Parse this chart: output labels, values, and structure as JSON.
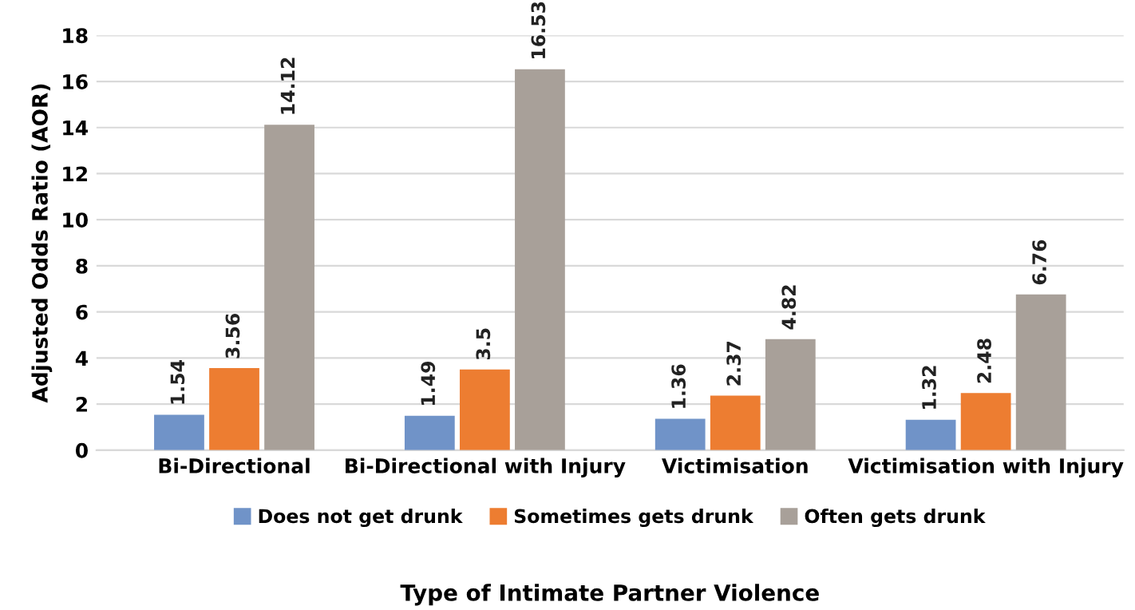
{
  "chart_data": {
    "type": "bar",
    "xlabel": "Type of Intimate Partner Violence",
    "ylabel": "Adjusted Odds Ratio (AOR)",
    "categories": [
      "Bi-Directional",
      "Bi-Directional with Injury",
      "Victimisation",
      "Victimisation with Injury"
    ],
    "series": [
      {
        "name": "Does not get drunk",
        "color": "#7093c8",
        "values": [
          1.54,
          1.49,
          1.36,
          1.32
        ]
      },
      {
        "name": "Sometimes gets drunk",
        "color": "#ed7d31",
        "values": [
          3.56,
          3.5,
          2.37,
          2.48
        ]
      },
      {
        "name": "Often gets drunk",
        "color": "#a8a099",
        "values": [
          14.12,
          16.53,
          4.82,
          6.76
        ]
      }
    ],
    "ylim": [
      0,
      18
    ],
    "yticks": [
      0,
      2,
      4,
      6,
      8,
      10,
      12,
      14,
      16,
      18
    ],
    "grid": "y",
    "legend": "bottom",
    "data_labels": true
  }
}
